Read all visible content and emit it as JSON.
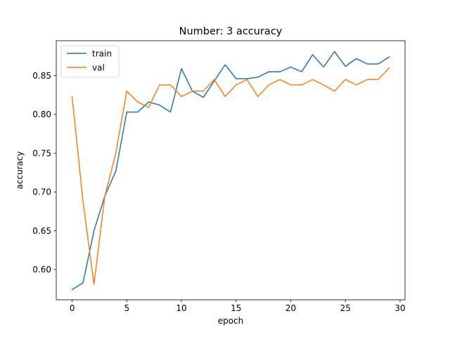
{
  "chart_data": {
    "type": "line",
    "title": "Number: 3 accuracy",
    "xlabel": "epoch",
    "ylabel": "accuracy",
    "xlim": [
      -1.45,
      30.45
    ],
    "ylim": [
      0.561,
      0.895
    ],
    "xticks": [
      0,
      5,
      10,
      15,
      20,
      25,
      30
    ],
    "xtick_labels": [
      "0",
      "5",
      "10",
      "15",
      "20",
      "25",
      "30"
    ],
    "yticks": [
      0.6,
      0.65,
      0.7,
      0.75,
      0.8,
      0.85
    ],
    "ytick_labels": [
      "0.60",
      "0.65",
      "0.70",
      "0.75",
      "0.80",
      "0.85"
    ],
    "grid": false,
    "legend_position": "top-left",
    "x": [
      0,
      1,
      2,
      3,
      4,
      5,
      6,
      7,
      8,
      9,
      10,
      11,
      12,
      13,
      14,
      15,
      16,
      17,
      18,
      19,
      20,
      21,
      22,
      23,
      24,
      25,
      26,
      27,
      28,
      29
    ],
    "series": [
      {
        "name": "train",
        "color": "#1f77b4",
        "values": [
          0.574,
          0.583,
          0.65,
          0.695,
          0.727,
          0.803,
          0.803,
          0.816,
          0.812,
          0.803,
          0.859,
          0.83,
          0.822,
          0.843,
          0.864,
          0.846,
          0.846,
          0.848,
          0.855,
          0.855,
          0.861,
          0.855,
          0.877,
          0.861,
          0.881,
          0.862,
          0.872,
          0.865,
          0.865,
          0.874
        ]
      },
      {
        "name": "val",
        "color": "#ff7f0e",
        "values": [
          0.823,
          0.688,
          0.581,
          0.695,
          0.75,
          0.83,
          0.816,
          0.809,
          0.838,
          0.838,
          0.823,
          0.83,
          0.83,
          0.845,
          0.823,
          0.838,
          0.845,
          0.823,
          0.838,
          0.845,
          0.838,
          0.838,
          0.845,
          0.838,
          0.83,
          0.845,
          0.838,
          0.845,
          0.845,
          0.86
        ]
      }
    ]
  }
}
